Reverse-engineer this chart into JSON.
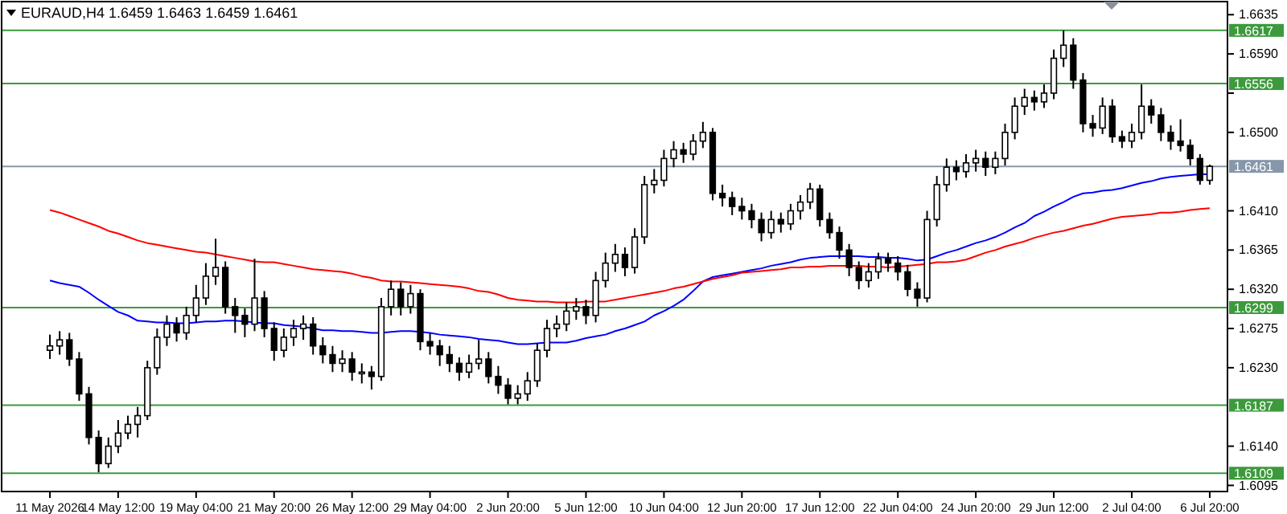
{
  "chart_data": {
    "type": "candlestick",
    "title": "EURAUD,H4  1.6459 1.6463 1.6459 1.6461",
    "categories": [
      "11 May 2026",
      null,
      null,
      null,
      null,
      null,
      null,
      "14 May 12:00",
      null,
      null,
      null,
      null,
      null,
      null,
      null,
      "19 May 04:00",
      null,
      null,
      null,
      null,
      null,
      null,
      null,
      "21 May 20:00",
      null,
      null,
      null,
      null,
      null,
      null,
      null,
      "26 May 12:00",
      null,
      null,
      null,
      null,
      null,
      null,
      null,
      "29 May 04:00",
      null,
      null,
      null,
      null,
      null,
      null,
      null,
      "2 Jun 20:00",
      null,
      null,
      null,
      null,
      null,
      null,
      null,
      "5 Jun 12:00",
      null,
      null,
      null,
      null,
      null,
      null,
      null,
      "10 Jun 04:00",
      null,
      null,
      null,
      null,
      null,
      null,
      null,
      "12 Jun 20:00",
      null,
      null,
      null,
      null,
      null,
      null,
      null,
      "17 Jun 12:00",
      null,
      null,
      null,
      null,
      null,
      null,
      null,
      "22 Jun 04:00",
      null,
      null,
      null,
      null,
      null,
      null,
      null,
      "24 Jun 20:00",
      null,
      null,
      null,
      null,
      null,
      null,
      null,
      "29 Jun 12:00",
      null,
      null,
      null,
      null,
      null,
      null,
      null,
      "2 Jul 04:00",
      null,
      null,
      null,
      null,
      null,
      null,
      null,
      "6 Jul 20:00"
    ],
    "ohlc": [
      [
        1.625,
        1.6268,
        1.624,
        1.6255
      ],
      [
        1.6255,
        1.6272,
        1.6245,
        1.6262
      ],
      [
        1.6262,
        1.627,
        1.6232,
        1.624
      ],
      [
        1.624,
        1.6248,
        1.6192,
        1.62
      ],
      [
        1.62,
        1.6208,
        1.6142,
        1.615
      ],
      [
        1.615,
        1.6158,
        1.611,
        1.612
      ],
      [
        1.612,
        1.615,
        1.6115,
        1.614
      ],
      [
        1.614,
        1.617,
        1.6132,
        1.6155
      ],
      [
        1.6155,
        1.6175,
        1.6148,
        1.6165
      ],
      [
        1.6165,
        1.6185,
        1.615,
        1.6175
      ],
      [
        1.6175,
        1.6238,
        1.617,
        1.623
      ],
      [
        1.623,
        1.6275,
        1.6222,
        1.6265
      ],
      [
        1.6265,
        1.629,
        1.6255,
        1.628
      ],
      [
        1.628,
        1.6288,
        1.626,
        1.627
      ],
      [
        1.627,
        1.63,
        1.6262,
        1.629
      ],
      [
        1.629,
        1.6325,
        1.6282,
        1.631
      ],
      [
        1.631,
        1.635,
        1.6302,
        1.6335
      ],
      [
        1.6335,
        1.6378,
        1.6325,
        1.6345
      ],
      [
        1.6345,
        1.6352,
        1.6292,
        1.63
      ],
      [
        1.63,
        1.631,
        1.627,
        1.629
      ],
      [
        1.629,
        1.6298,
        1.6265,
        1.628
      ],
      [
        1.628,
        1.6355,
        1.6272,
        1.631
      ],
      [
        1.631,
        1.6318,
        1.6265,
        1.6275
      ],
      [
        1.6275,
        1.6282,
        1.6238,
        1.625
      ],
      [
        1.625,
        1.6275,
        1.6242,
        1.6265
      ],
      [
        1.6265,
        1.6285,
        1.6255,
        1.6275
      ],
      [
        1.6275,
        1.629,
        1.6262,
        1.628
      ],
      [
        1.628,
        1.6288,
        1.6245,
        1.6255
      ],
      [
        1.6255,
        1.6265,
        1.6235,
        1.6245
      ],
      [
        1.6245,
        1.6255,
        1.6225,
        1.6235
      ],
      [
        1.6235,
        1.625,
        1.6225,
        1.624
      ],
      [
        1.624,
        1.6248,
        1.6215,
        1.6225
      ],
      [
        1.6225,
        1.6235,
        1.6212,
        1.6225
      ],
      [
        1.6225,
        1.6232,
        1.6205,
        1.622
      ],
      [
        1.622,
        1.631,
        1.6215,
        1.63
      ],
      [
        1.63,
        1.633,
        1.629,
        1.632
      ],
      [
        1.632,
        1.6328,
        1.629,
        1.63
      ],
      [
        1.63,
        1.6325,
        1.6292,
        1.6315
      ],
      [
        1.6315,
        1.632,
        1.625,
        1.626
      ],
      [
        1.626,
        1.627,
        1.6245,
        1.6255
      ],
      [
        1.6255,
        1.6262,
        1.6232,
        1.6245
      ],
      [
        1.6245,
        1.6255,
        1.6225,
        1.6235
      ],
      [
        1.6235,
        1.6242,
        1.6215,
        1.6225
      ],
      [
        1.6225,
        1.6245,
        1.6218,
        1.6235
      ],
      [
        1.6235,
        1.6262,
        1.6228,
        1.624
      ],
      [
        1.624,
        1.6248,
        1.6212,
        1.622
      ],
      [
        1.622,
        1.6232,
        1.62,
        1.621
      ],
      [
        1.621,
        1.6218,
        1.6188,
        1.6195
      ],
      [
        1.6195,
        1.621,
        1.6188,
        1.62
      ],
      [
        1.62,
        1.6225,
        1.6192,
        1.6215
      ],
      [
        1.6215,
        1.6258,
        1.6208,
        1.625
      ],
      [
        1.625,
        1.6285,
        1.6242,
        1.6275
      ],
      [
        1.6275,
        1.629,
        1.6265,
        1.628
      ],
      [
        1.628,
        1.6305,
        1.6272,
        1.6295
      ],
      [
        1.6295,
        1.631,
        1.6285,
        1.63
      ],
      [
        1.63,
        1.6308,
        1.628,
        1.629
      ],
      [
        1.629,
        1.634,
        1.6282,
        1.633
      ],
      [
        1.633,
        1.6362,
        1.6322,
        1.635
      ],
      [
        1.635,
        1.6372,
        1.634,
        1.636
      ],
      [
        1.636,
        1.6368,
        1.6335,
        1.6345
      ],
      [
        1.6345,
        1.639,
        1.6338,
        1.638
      ],
      [
        1.638,
        1.645,
        1.6372,
        1.644
      ],
      [
        1.644,
        1.6458,
        1.643,
        1.6445
      ],
      [
        1.6445,
        1.648,
        1.6438,
        1.647
      ],
      [
        1.647,
        1.649,
        1.646,
        1.648
      ],
      [
        1.648,
        1.6488,
        1.6465,
        1.6475
      ],
      [
        1.6475,
        1.6498,
        1.6468,
        1.649
      ],
      [
        1.649,
        1.6512,
        1.6482,
        1.65
      ],
      [
        1.65,
        1.6505,
        1.6422,
        1.643
      ],
      [
        1.643,
        1.644,
        1.6415,
        1.6425
      ],
      [
        1.6425,
        1.6432,
        1.6405,
        1.6415
      ],
      [
        1.6415,
        1.6425,
        1.64,
        1.641
      ],
      [
        1.641,
        1.6418,
        1.639,
        1.64
      ],
      [
        1.64,
        1.6408,
        1.6375,
        1.6385
      ],
      [
        1.6385,
        1.641,
        1.6378,
        1.64
      ],
      [
        1.64,
        1.6408,
        1.6385,
        1.6395
      ],
      [
        1.6395,
        1.6418,
        1.6388,
        1.641
      ],
      [
        1.641,
        1.6428,
        1.64,
        1.642
      ],
      [
        1.642,
        1.6442,
        1.6412,
        1.6435
      ],
      [
        1.6435,
        1.644,
        1.6392,
        1.64
      ],
      [
        1.64,
        1.6408,
        1.6378,
        1.6385
      ],
      [
        1.6385,
        1.6392,
        1.6355,
        1.6365
      ],
      [
        1.6365,
        1.6372,
        1.6335,
        1.6345
      ],
      [
        1.6345,
        1.6352,
        1.632,
        1.633
      ],
      [
        1.633,
        1.635,
        1.6322,
        1.634
      ],
      [
        1.634,
        1.6362,
        1.6332,
        1.6355
      ],
      [
        1.6355,
        1.6362,
        1.634,
        1.635
      ],
      [
        1.635,
        1.6358,
        1.633,
        1.634
      ],
      [
        1.634,
        1.6348,
        1.6312,
        1.632
      ],
      [
        1.632,
        1.6328,
        1.63,
        1.631
      ],
      [
        1.631,
        1.641,
        1.6305,
        1.64
      ],
      [
        1.64,
        1.645,
        1.6392,
        1.644
      ],
      [
        1.644,
        1.647,
        1.6432,
        1.646
      ],
      [
        1.646,
        1.6468,
        1.6445,
        1.6455
      ],
      [
        1.6455,
        1.6475,
        1.6448,
        1.6465
      ],
      [
        1.6465,
        1.648,
        1.6455,
        1.647
      ],
      [
        1.647,
        1.6478,
        1.645,
        1.646
      ],
      [
        1.646,
        1.6478,
        1.6452,
        1.647
      ],
      [
        1.647,
        1.651,
        1.6462,
        1.65
      ],
      [
        1.65,
        1.654,
        1.6492,
        1.653
      ],
      [
        1.653,
        1.655,
        1.652,
        1.654
      ],
      [
        1.654,
        1.6548,
        1.6525,
        1.6535
      ],
      [
        1.6535,
        1.6555,
        1.6528,
        1.6545
      ],
      [
        1.6545,
        1.6595,
        1.6538,
        1.6585
      ],
      [
        1.6585,
        1.6617,
        1.6575,
        1.66
      ],
      [
        1.66,
        1.6608,
        1.655,
        1.656
      ],
      [
        1.656,
        1.6568,
        1.65,
        1.651
      ],
      [
        1.651,
        1.652,
        1.6495,
        1.6505
      ],
      [
        1.6505,
        1.654,
        1.6498,
        1.653
      ],
      [
        1.653,
        1.6538,
        1.6488,
        1.6495
      ],
      [
        1.6495,
        1.6502,
        1.6482,
        1.649
      ],
      [
        1.649,
        1.651,
        1.6482,
        1.65
      ],
      [
        1.65,
        1.6555,
        1.6492,
        1.653
      ],
      [
        1.653,
        1.6538,
        1.651,
        1.652
      ],
      [
        1.652,
        1.6528,
        1.649,
        1.65
      ],
      [
        1.65,
        1.6508,
        1.648,
        1.649
      ],
      [
        1.649,
        1.6515,
        1.6478,
        1.6485
      ],
      [
        1.6485,
        1.6492,
        1.6462,
        1.647
      ],
      [
        1.647,
        1.6475,
        1.644,
        1.6445
      ],
      [
        1.6445,
        1.6463,
        1.644,
        1.6461
      ]
    ],
    "series": [
      {
        "type": "line",
        "color": "#0000ff",
        "values": [
          1.633,
          1.6327,
          1.6325,
          1.6323,
          1.6316,
          1.6308,
          1.6301,
          1.6294,
          1.629,
          1.6284,
          1.6283,
          1.6282,
          1.6282,
          1.6281,
          1.6281,
          1.6282,
          1.6283,
          1.6283,
          1.6284,
          1.6284,
          1.6283,
          1.6282,
          1.6281,
          1.6281,
          1.6279,
          1.6278,
          1.6277,
          1.6275,
          1.6273,
          1.6273,
          1.6272,
          1.6272,
          1.6271,
          1.627,
          1.627,
          1.6271,
          1.6272,
          1.6272,
          1.6271,
          1.627,
          1.6268,
          1.6267,
          1.6266,
          1.6265,
          1.6263,
          1.6262,
          1.6261,
          1.6259,
          1.6257,
          1.6257,
          1.6258,
          1.6259,
          1.6259,
          1.6259,
          1.6261,
          1.6264,
          1.6266,
          1.6268,
          1.6272,
          1.6275,
          1.6279,
          1.6283,
          1.629,
          1.6295,
          1.6301,
          1.6308,
          1.6318,
          1.6329,
          1.6334,
          1.6336,
          1.6338,
          1.634,
          1.6342,
          1.6344,
          1.6347,
          1.6349,
          1.6351,
          1.6354,
          1.6356,
          1.6357,
          1.6358,
          1.6358,
          1.6358,
          1.6358,
          1.6357,
          1.6357,
          1.6356,
          1.6356,
          1.6355,
          1.6353,
          1.6354,
          1.6358,
          1.6362,
          1.6365,
          1.6369,
          1.6373,
          1.6376,
          1.638,
          1.6385,
          1.6391,
          1.6396,
          1.6404,
          1.6409,
          1.6415,
          1.642,
          1.6426,
          1.643,
          1.6431,
          1.6433,
          1.6434,
          1.6436,
          1.6439,
          1.6442,
          1.6444,
          1.6447,
          1.6449,
          1.645,
          1.6451,
          1.6452,
          1.6452
        ]
      },
      {
        "type": "line",
        "color": "#ff0000",
        "values": [
          1.6411,
          1.6408,
          1.6404,
          1.64,
          1.6396,
          1.6392,
          1.6387,
          1.6384,
          1.638,
          1.6376,
          1.6373,
          1.6371,
          1.6369,
          1.6367,
          1.6365,
          1.6363,
          1.6362,
          1.636,
          1.6358,
          1.6356,
          1.6354,
          1.6352,
          1.6351,
          1.6351,
          1.6349,
          1.6347,
          1.6345,
          1.6343,
          1.6342,
          1.6341,
          1.634,
          1.6338,
          1.6335,
          1.6333,
          1.633,
          1.6329,
          1.6329,
          1.6328,
          1.6327,
          1.6326,
          1.6325,
          1.6324,
          1.6323,
          1.6321,
          1.6318,
          1.6317,
          1.6314,
          1.631,
          1.6308,
          1.6307,
          1.6306,
          1.6306,
          1.6305,
          1.6305,
          1.6305,
          1.6306,
          1.6306,
          1.6306,
          1.6308,
          1.631,
          1.6312,
          1.6314,
          1.6316,
          1.6318,
          1.6321,
          1.6323,
          1.6326,
          1.6329,
          1.6332,
          1.6334,
          1.6336,
          1.6339,
          1.634,
          1.6341,
          1.6342,
          1.6343,
          1.6345,
          1.6345,
          1.6346,
          1.6346,
          1.6347,
          1.6347,
          1.6347,
          1.6347,
          1.6346,
          1.6346,
          1.6345,
          1.6346,
          1.6347,
          1.6348,
          1.6349,
          1.6351,
          1.6351,
          1.6352,
          1.6354,
          1.6358,
          1.6362,
          1.6365,
          1.6369,
          1.6372,
          1.6375,
          1.6379,
          1.6382,
          1.6385,
          1.6387,
          1.639,
          1.6393,
          1.6395,
          1.6398,
          1.6401,
          1.6403,
          1.6404,
          1.6405,
          1.6406,
          1.6408,
          1.6408,
          1.6409,
          1.6411,
          1.6412,
          1.6413
        ]
      }
    ],
    "ylim": [
      1.6088,
      1.665
    ],
    "yticks": [
      1.6635,
      {
        "value": 1.659,
        "label": "1.6590"
      },
      {
        "value": 1.6545,
        "label": null
      },
      {
        "value": 1.65,
        "label": "1.6500"
      },
      {
        "value": 1.641,
        "label": "1.6410"
      },
      1.6365,
      {
        "value": 1.632,
        "label": "1.6320"
      },
      1.6275,
      {
        "value": 1.623,
        "label": "1.6230"
      },
      {
        "value": 1.614,
        "label": "1.6140"
      },
      1.6095
    ],
    "ref_lines": [
      {
        "axis": "y",
        "value": 1.6617,
        "label": "1.6617",
        "color": "#3c9a3c"
      },
      {
        "axis": "y",
        "value": 1.6556,
        "label": "1.6556",
        "color": "#3c9a3c"
      },
      {
        "axis": "y",
        "value": 1.6461,
        "label": "1.6461",
        "color": "#8796aa"
      },
      {
        "axis": "y",
        "value": 1.6299,
        "label": "1.6299",
        "color": "#3c9a3c"
      },
      {
        "axis": "y",
        "value": 1.6187,
        "label": "1.6187",
        "color": "#3c9a3c"
      },
      {
        "axis": "y",
        "value": 1.6109,
        "label": "1.6109",
        "color": "#3c9a3c"
      }
    ]
  }
}
